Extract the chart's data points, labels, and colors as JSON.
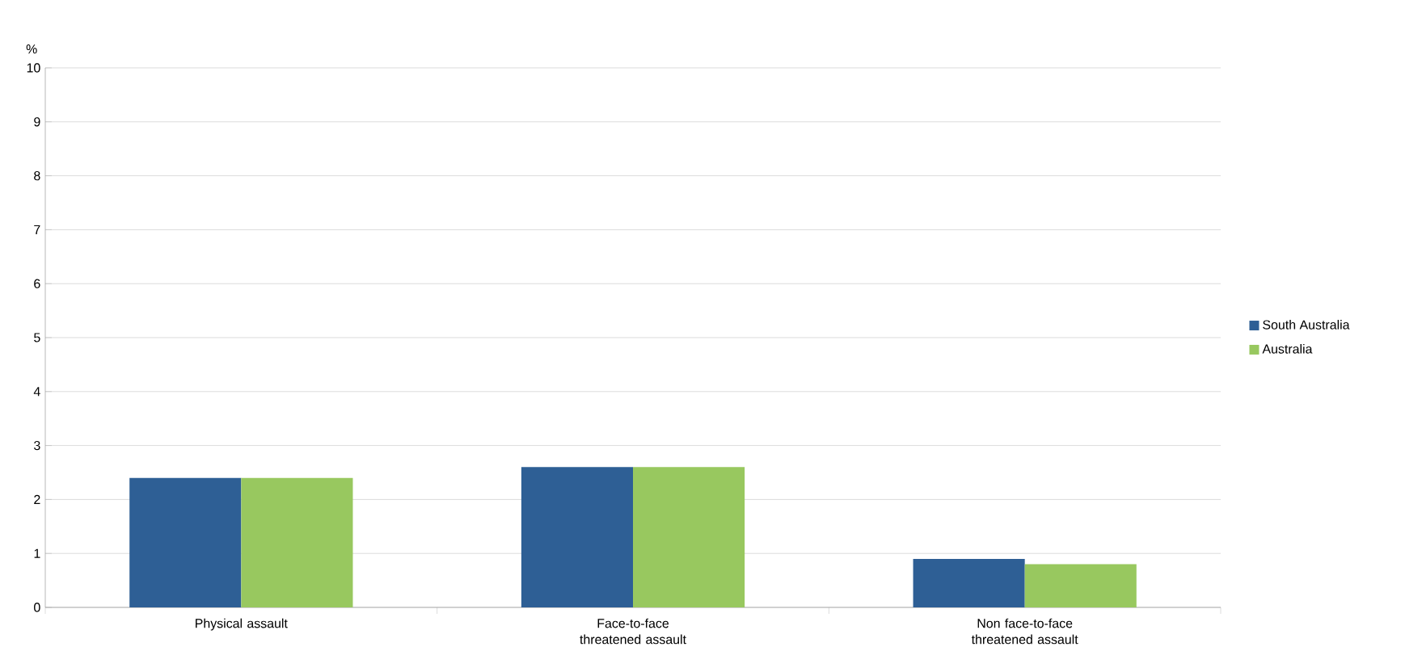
{
  "chart_data": {
    "type": "bar",
    "ylabel": "%",
    "categories": [
      "Physical assault",
      "Face-to-face threatened assault",
      "Non face-to-face threatened assault"
    ],
    "series": [
      {
        "name": "South Australia",
        "color": "#2e5f95",
        "values": [
          2.4,
          2.6,
          0.9
        ]
      },
      {
        "name": "Australia",
        "color": "#98c85f",
        "values": [
          2.4,
          2.6,
          0.8
        ]
      }
    ],
    "ylim": [
      0,
      10
    ],
    "yticks": [
      0,
      1,
      2,
      3,
      4,
      5,
      6,
      7,
      8,
      9,
      10
    ],
    "grid": "y",
    "legend": "right"
  }
}
